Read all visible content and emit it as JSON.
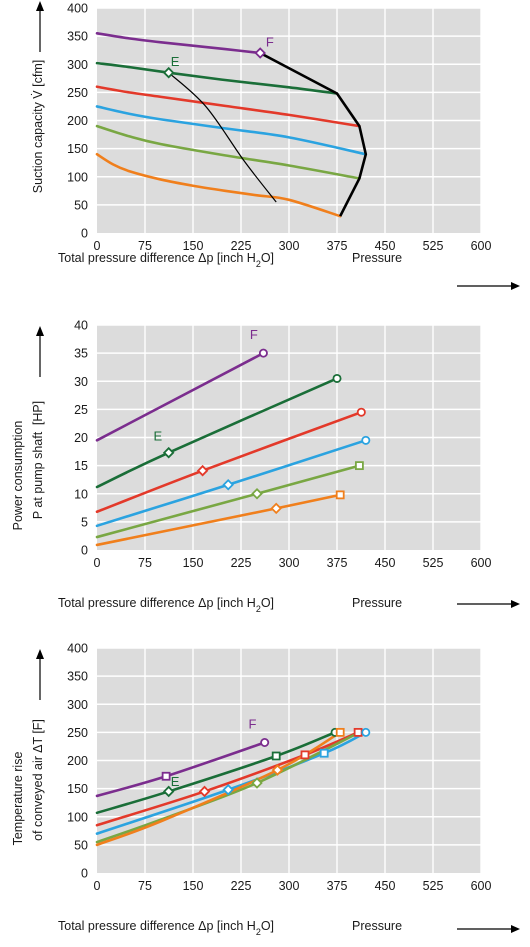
{
  "chart_data": [
    {
      "type": "line",
      "xlabel": "Total pressure difference Δp [inch H2O]",
      "xlabel_main": "Total pressure difference Δp [inch H",
      "xlabel_sub": "2",
      "xlabel_end": "O]",
      "xlabel_right": "Pressure",
      "ylabel": "Suction capacity V̇ [cfm]",
      "xlim": [
        0,
        600
      ],
      "ylim": [
        0,
        400
      ],
      "xticks": [
        0,
        75,
        150,
        225,
        300,
        375,
        450,
        525,
        600
      ],
      "yticks": [
        0,
        50,
        100,
        150,
        200,
        250,
        300,
        350,
        400
      ],
      "grid": true,
      "series": [
        {
          "label": "F",
          "color": "#7b2d8e",
          "marker": "diamond",
          "marker_at": [
            [
              255,
              320
            ]
          ],
          "x": [
            0,
            50,
            100,
            150,
            200,
            255
          ],
          "y": [
            355,
            346,
            339,
            333,
            327,
            320
          ]
        },
        {
          "label": "E",
          "color": "#1a6e38",
          "marker": "diamond",
          "marker_at": [
            [
              112,
              285
            ]
          ],
          "x": [
            0,
            50,
            112,
            200,
            300,
            375
          ],
          "y": [
            302,
            295,
            285,
            272,
            259,
            248
          ]
        },
        {
          "color": "#e3392a",
          "x": [
            0,
            50,
            100,
            200,
            300,
            410
          ],
          "y": [
            260,
            250,
            242,
            226,
            210,
            190
          ]
        },
        {
          "color": "#2ba3e0",
          "x": [
            0,
            50,
            100,
            200,
            300,
            420
          ],
          "y": [
            225,
            212,
            202,
            186,
            170,
            140
          ]
        },
        {
          "color": "#79a743",
          "x": [
            0,
            50,
            100,
            200,
            300,
            410
          ],
          "y": [
            190,
            172,
            158,
            138,
            120,
            97
          ]
        },
        {
          "color": "#f07f1c",
          "x": [
            0,
            25,
            50,
            100,
            150,
            200,
            250,
            300,
            380
          ],
          "y": [
            140,
            122,
            110,
            95,
            84,
            75,
            67,
            59,
            30
          ]
        }
      ],
      "envelope": {
        "color": "#000000",
        "x": [
          255,
          375,
          410,
          420,
          410,
          380
        ],
        "y": [
          320,
          248,
          190,
          140,
          97,
          30
        ]
      },
      "thin_line": {
        "color": "#000000",
        "x": [
          112,
          170,
          230,
          280
        ],
        "y": [
          285,
          225,
          128,
          55
        ]
      },
      "annotations": [
        {
          "text": "F",
          "x": 270,
          "y": 332,
          "color": "#7b2d8e"
        },
        {
          "text": "E",
          "x": 122,
          "y": 297,
          "color": "#1a6e38"
        }
      ]
    },
    {
      "type": "line",
      "xlabel": "Total pressure difference Δp [inch H2O]",
      "xlabel_main": "Total pressure difference Δp [inch H",
      "xlabel_sub": "2",
      "xlabel_end": "O]",
      "xlabel_right": "Pressure",
      "ylabel_line1": "Power consumption",
      "ylabel_line2": "P at pump shaft",
      "ylabel_unit": "[HP]",
      "xlim": [
        0,
        600
      ],
      "ylim": [
        0,
        40
      ],
      "xticks": [
        0,
        75,
        150,
        225,
        300,
        375,
        450,
        525,
        600
      ],
      "yticks": [
        0,
        5,
        10,
        15,
        20,
        25,
        30,
        35,
        40
      ],
      "grid": true,
      "series": [
        {
          "label": "F",
          "color": "#7b2d8e",
          "marker": "circle",
          "marker_at": [
            [
              260,
              35
            ]
          ],
          "x": [
            0,
            260
          ],
          "y": [
            19.5,
            35
          ]
        },
        {
          "label": "E",
          "color": "#1a6e38",
          "marker": "diamond",
          "marker_at": [
            [
              112,
              17.3
            ]
          ],
          "x": [
            0,
            112,
            375
          ],
          "y": [
            11.2,
            17.3,
            30.5
          ]
        },
        {
          "color": "#e3392a",
          "marker": "diamond",
          "marker_at": [
            [
              165,
              14.1
            ]
          ],
          "x": [
            0,
            165,
            413
          ],
          "y": [
            6.8,
            14.1,
            24.5
          ]
        },
        {
          "color": "#2ba3e0",
          "marker": "diamond",
          "marker_at": [
            [
              205,
              11.6
            ]
          ],
          "x": [
            0,
            205,
            420
          ],
          "y": [
            4.3,
            11.6,
            19.5
          ]
        },
        {
          "color": "#79a743",
          "marker": "diamond",
          "marker_at": [
            [
              250,
              10
            ]
          ],
          "x": [
            0,
            250,
            410
          ],
          "y": [
            2.3,
            10,
            15
          ]
        },
        {
          "color": "#f07f1c",
          "marker": "diamond",
          "marker_at": [
            [
              280,
              7.4
            ]
          ],
          "x": [
            0,
            280,
            380
          ],
          "y": [
            0.9,
            7.4,
            9.8
          ]
        }
      ],
      "end_markers": [
        {
          "series": 1,
          "shape": "circle",
          "x": 375,
          "y": 30.5
        },
        {
          "series": 2,
          "shape": "circle",
          "x": 413,
          "y": 24.5
        },
        {
          "series": 3,
          "shape": "circle",
          "x": 420,
          "y": 19.5
        },
        {
          "series": 4,
          "shape": "square",
          "x": 410,
          "y": 15
        },
        {
          "series": 5,
          "shape": "square",
          "x": 380,
          "y": 9.8
        }
      ],
      "annotations": [
        {
          "text": "F",
          "x": 245,
          "y": 37.5,
          "color": "#7b2d8e"
        },
        {
          "text": "E",
          "x": 95,
          "y": 19.5,
          "color": "#1a6e38"
        }
      ]
    },
    {
      "type": "line",
      "xlabel": "Total pressure difference Δp [inch H2O]",
      "xlabel_main": "Total pressure difference Δp [inch H",
      "xlabel_sub": "2",
      "xlabel_end": "O]",
      "xlabel_right": "Pressure",
      "ylabel_line1": "Temperature rise",
      "ylabel_line2": "of conveyed air",
      "ylabel_unit": "ΔT [F]",
      "xlim": [
        0,
        600
      ],
      "ylim": [
        0,
        400
      ],
      "xticks": [
        0,
        75,
        150,
        225,
        300,
        375,
        450,
        525,
        600
      ],
      "yticks": [
        0,
        50,
        100,
        150,
        200,
        250,
        300,
        350,
        400
      ],
      "grid": true,
      "series": [
        {
          "label": "F",
          "color": "#7b2d8e",
          "marker": "circle",
          "marker_at": [
            [
              262,
              232
            ]
          ],
          "x": [
            0,
            108,
            262
          ],
          "y": [
            137,
            172,
            232
          ]
        },
        {
          "label": "E",
          "color": "#1a6e38",
          "marker": "diamond",
          "marker_at": [
            [
              112,
              145
            ]
          ],
          "x": [
            0,
            112,
            280,
            372
          ],
          "y": [
            107,
            145,
            208,
            250
          ]
        },
        {
          "color": "#e3392a",
          "marker": "diamond",
          "marker_at": [
            [
              168,
              145
            ]
          ],
          "x": [
            0,
            168,
            325,
            408
          ],
          "y": [
            85,
            145,
            210,
            250
          ]
        },
        {
          "color": "#2ba3e0",
          "marker": "diamond",
          "marker_at": [
            [
              205,
              148
            ]
          ],
          "x": [
            0,
            205,
            355,
            420
          ],
          "y": [
            70,
            148,
            213,
            250
          ]
        },
        {
          "color": "#79a743",
          "marker": "diamond",
          "marker_at": [
            [
              250,
              160
            ]
          ],
          "x": [
            0,
            100,
            250,
            410
          ],
          "y": [
            55,
            95,
            160,
            250
          ]
        },
        {
          "color": "#f07f1c",
          "marker": "diamond",
          "marker_at": [
            [
              282,
              183
            ]
          ],
          "x": [
            0,
            100,
            282,
            380
          ],
          "y": [
            50,
            92,
            183,
            250
          ]
        }
      ],
      "end_markers": [
        {
          "series": 0,
          "shape": "square",
          "x": 108,
          "y": 172
        },
        {
          "series": 1,
          "shape": "square",
          "x": 280,
          "y": 208
        },
        {
          "series": 1,
          "shape": "circle",
          "x": 372,
          "y": 250
        },
        {
          "series": 2,
          "shape": "square",
          "x": 325,
          "y": 210
        },
        {
          "series": 2,
          "shape": "square",
          "x": 408,
          "y": 250
        },
        {
          "series": 3,
          "shape": "square",
          "x": 355,
          "y": 213
        },
        {
          "series": 3,
          "shape": "circle",
          "x": 420,
          "y": 250
        },
        {
          "series": 5,
          "shape": "square",
          "x": 380,
          "y": 250
        }
      ],
      "annotations": [
        {
          "text": "F",
          "x": 243,
          "y": 257,
          "color": "#7b2d8e"
        },
        {
          "text": "E",
          "x": 122,
          "y": 155,
          "color": "#1a6e38"
        }
      ]
    }
  ]
}
